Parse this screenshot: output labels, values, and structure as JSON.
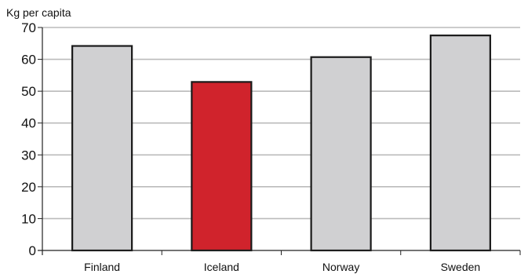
{
  "chart_data": {
    "type": "bar",
    "title": "",
    "ylabel": "Kg per capita",
    "xlabel": "",
    "categories": [
      "Finland",
      "Iceland",
      "Norway",
      "Sweden"
    ],
    "values": [
      64.2,
      52.9,
      60.7,
      67.5
    ],
    "highlight_category": "Iceland",
    "ylim": [
      0,
      70
    ],
    "yticks": [
      0,
      10,
      20,
      30,
      40,
      50,
      60,
      70
    ],
    "grid": "horizontal",
    "legend": "none",
    "colors": {
      "bar": "#d0d0d2",
      "highlight": "#d0232c",
      "bar_outline": "#1a1a1a",
      "grid": "#bbbbbb",
      "axis": "#222222"
    }
  }
}
